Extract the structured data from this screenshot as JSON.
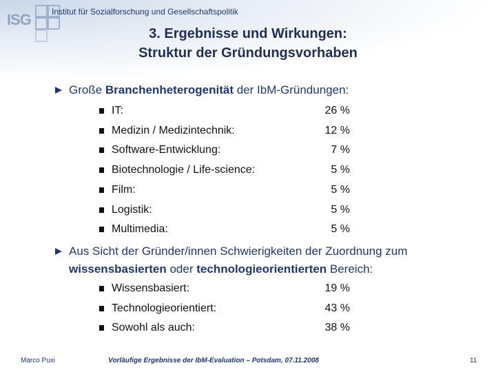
{
  "header": {
    "logo": "ISG",
    "institute": "Institut für Sozialforschung und Gesellschaftspolitik"
  },
  "title": [
    "3. Ergebnisse und Wirkungen:",
    "Struktur der Gründungsvorhaben"
  ],
  "sections": [
    {
      "text": [
        "Große ",
        "Branchenheterogenität",
        " der IbM-Gründungen:"
      ],
      "items": [
        {
          "label": "IT:",
          "value": "26 %"
        },
        {
          "label": "Medizin / Medizintechnik:",
          "value": "12 %"
        },
        {
          "label": "Software-Entwicklung:",
          "value": "7 %"
        },
        {
          "label": "Biotechnologie / Life-science:",
          "value": "5 %"
        },
        {
          "label": "Film:",
          "value": "5 %"
        },
        {
          "label": "Logistik:",
          "value": "5 %"
        },
        {
          "label": "Multimedia:",
          "value": "5 %"
        }
      ]
    },
    {
      "text": [
        "Aus Sicht der Gründer/innen Schwierigkeiten der Zuordnung zum ",
        "wissensbasierten",
        " oder ",
        "technologieorientierten",
        " Bereich:"
      ],
      "items": [
        {
          "label": "Wissensbasiert:",
          "value": "19 %"
        },
        {
          "label": "Technologieorientiert:",
          "value": "43 %"
        },
        {
          "label": "Sowohl als auch:",
          "value": "38 %"
        }
      ]
    }
  ],
  "footer": {
    "author": "Marco Puxi",
    "center": "Vorläufige Ergebnisse der IbM-Evaluation – Potsdam, 07.11.2008",
    "page": "11"
  }
}
